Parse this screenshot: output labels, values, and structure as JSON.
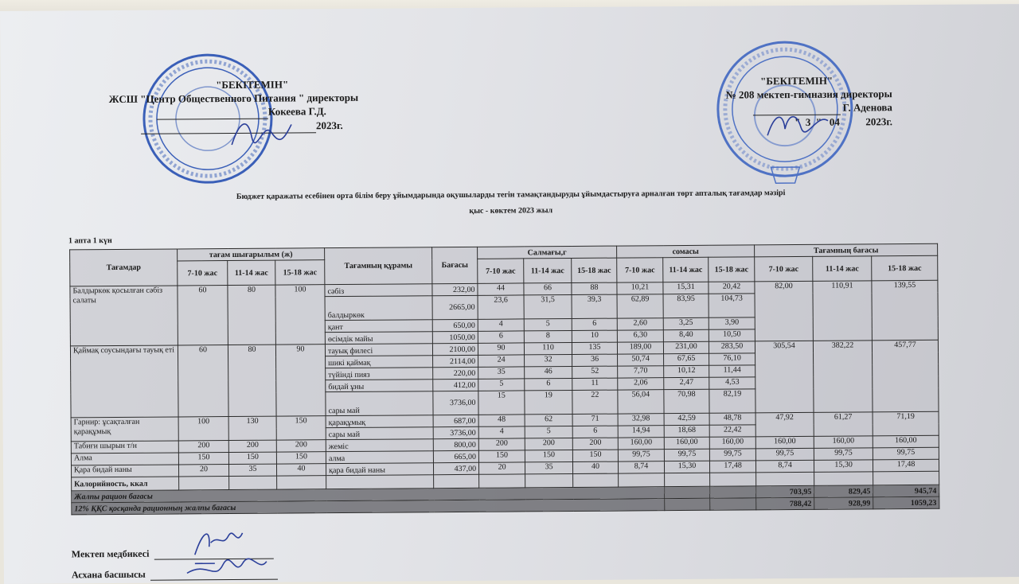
{
  "approval_left": {
    "title": "\"БЕКІТЕМІН\"",
    "line1": "ЖСШ \"Центр Общественного Питания \" директоры",
    "name": "Кокеева Г.Д.",
    "date": "2023г."
  },
  "approval_right": {
    "title": "\"БЕКІТЕМІН\"",
    "line1": "№ 208 мектеп-гимназия директоры",
    "name": "Г. Аденова",
    "date": "\"  3  \"   04          2023г."
  },
  "stamps": {
    "left": "Центр Общественного Питания",
    "right": "№ 208 мектеп-гимназиясы"
  },
  "heading": {
    "line1": "Бюджет қаражаты есебінен орта білім беру ұйымдарында оқушыларды тегін тамақтандыруды ұйымдастыруға арналған төрт апталық тағамдар мәзірі",
    "line2": "қыс - көктем 2023 жыл"
  },
  "day_label": "1 апта 1 күн",
  "table": {
    "headers": {
      "dishes": "Тағамдар",
      "yield": "тағам шығарылым  (ж)",
      "composition": "Тағамның құрамы",
      "price": "Бағасы",
      "weight": "Салмағы,г",
      "sum": "сомасы",
      "dish_price": "Тағамның бағасы",
      "ages": [
        "7-10 жас",
        "11-14 жас",
        "15-18 жас"
      ]
    },
    "dishes": [
      {
        "name": "Балдыркөк қосылған сәбіз салаты",
        "yield": [
          "60",
          "80",
          "100"
        ],
        "dish_price": [
          "82,00",
          "110,91",
          "139,55"
        ],
        "ingredients": [
          {
            "name": "сәбіз",
            "price": "232,00",
            "weight": [
              "44",
              "66",
              "88"
            ],
            "sum": [
              "10,21",
              "15,31",
              "20,42"
            ]
          },
          {
            "name": "балдыркөк",
            "price": "2665,00",
            "weight": [
              "23,6",
              "31,5",
              "39,3"
            ],
            "sum": [
              "62,89",
              "83,95",
              "104,73"
            ],
            "tall": true
          },
          {
            "name": "қант",
            "price": "650,00",
            "weight": [
              "4",
              "5",
              "6"
            ],
            "sum": [
              "2,60",
              "3,25",
              "3,90"
            ]
          },
          {
            "name": "өсімдік майы",
            "price": "1050,00",
            "weight": [
              "6",
              "8",
              "10"
            ],
            "sum": [
              "6,30",
              "8,40",
              "10,50"
            ]
          }
        ]
      },
      {
        "name": "Қаймақ соусындағы тауық еті",
        "yield": [
          "60",
          "80",
          "90"
        ],
        "dish_price": [
          "305,54",
          "382,22",
          "457,77"
        ],
        "ingredients": [
          {
            "name": "тауық филесі",
            "price": "2100,00",
            "weight": [
              "90",
              "110",
              "135"
            ],
            "sum": [
              "189,00",
              "231,00",
              "283,50"
            ]
          },
          {
            "name": "шикі қаймақ",
            "price": "2114,00",
            "weight": [
              "24",
              "32",
              "36"
            ],
            "sum": [
              "50,74",
              "67,65",
              "76,10"
            ]
          },
          {
            "name": "түйінді пияз",
            "price": "220,00",
            "weight": [
              "35",
              "46",
              "52"
            ],
            "sum": [
              "7,70",
              "10,12",
              "11,44"
            ]
          },
          {
            "name": "бидай ұны",
            "price": "412,00",
            "weight": [
              "5",
              "6",
              "11"
            ],
            "sum": [
              "2,06",
              "2,47",
              "4,53"
            ]
          },
          {
            "name": "сары май",
            "price": "3736,00",
            "weight": [
              "15",
              "19",
              "22"
            ],
            "sum": [
              "56,04",
              "70,98",
              "82,19"
            ],
            "tall": true
          }
        ]
      },
      {
        "name": "Гарнир: ұсақталған қарақұмық",
        "yield": [
          "100",
          "130",
          "150"
        ],
        "dish_price": [
          "47,92",
          "61,27",
          "71,19"
        ],
        "ingredients": [
          {
            "name": "қарақұмық",
            "price": "687,00",
            "weight": [
              "48",
              "62",
              "71"
            ],
            "sum": [
              "32,98",
              "42,59",
              "48,78"
            ]
          },
          {
            "name": "сары май",
            "price": "3736,00",
            "weight": [
              "4",
              "5",
              "6"
            ],
            "sum": [
              "14,94",
              "18,68",
              "22,42"
            ]
          }
        ]
      },
      {
        "name": "Табиғи шырын т/н",
        "yield": [
          "200",
          "200",
          "200"
        ],
        "dish_price": [
          "160,00",
          "160,00",
          "160,00"
        ],
        "ingredients": [
          {
            "name": "жеміс",
            "price": "800,00",
            "weight": [
              "200",
              "200",
              "200"
            ],
            "sum": [
              "160,00",
              "160,00",
              "160,00"
            ]
          }
        ]
      },
      {
        "name": "Алма",
        "yield": [
          "150",
          "150",
          "150"
        ],
        "dish_price": [
          "99,75",
          "99,75",
          "99,75"
        ],
        "ingredients": [
          {
            "name": "алма",
            "price": "665,00",
            "weight": [
              "150",
              "150",
              "150"
            ],
            "sum": [
              "99,75",
              "99,75",
              "99,75"
            ]
          }
        ]
      },
      {
        "name": "Қара бидай наны",
        "yield": [
          "20",
          "35",
          "40"
        ],
        "dish_price": [
          "8,74",
          "15,30",
          "17,48"
        ],
        "ingredients": [
          {
            "name": "қара бидай наны",
            "price": "437,00",
            "weight": [
              "20",
              "35",
              "40"
            ],
            "sum": [
              "8,74",
              "15,30",
              "17,48"
            ]
          }
        ]
      }
    ],
    "calorie_label": "Калорийность, ккал",
    "total_label": "Жалпы рацион бағасы",
    "total_values": [
      "703,95",
      "829,45",
      "945,74"
    ],
    "vat_label": "12% ҚҚС қосқанда рационның жалпы бағасы",
    "vat_values": [
      "788,42",
      "928,99",
      "1059,23"
    ]
  },
  "signatures": {
    "nurse": "Мектеп медбикесі",
    "canteen": "Асхана басшысы"
  },
  "colors": {
    "stamp": "#3a5fb8",
    "ink": "#2b3f9a"
  }
}
